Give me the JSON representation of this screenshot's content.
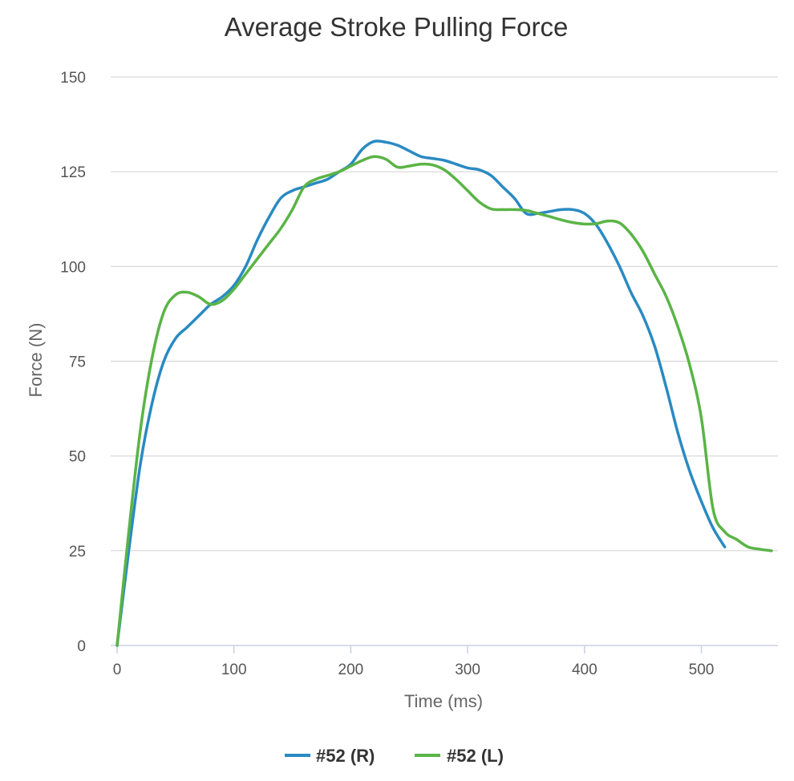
{
  "chart_data": {
    "type": "line",
    "title": "Average Stroke Pulling Force",
    "xlabel": "Time (ms)",
    "ylabel": "Force (N)",
    "xlim": [
      0,
      565
    ],
    "ylim": [
      0,
      150
    ],
    "x_ticks": [
      "0",
      "100",
      "200",
      "300",
      "400",
      "500"
    ],
    "y_ticks": [
      "0",
      "25",
      "50",
      "75",
      "100",
      "125",
      "150"
    ],
    "grid": true,
    "legend_position": "bottom-center",
    "series": [
      {
        "name": "#52 (R)",
        "color": "#2a8ac2",
        "points": [
          [
            0,
            0
          ],
          [
            10,
            25
          ],
          [
            20,
            48
          ],
          [
            30,
            64
          ],
          [
            40,
            75
          ],
          [
            50,
            81
          ],
          [
            60,
            84
          ],
          [
            70,
            87
          ],
          [
            80,
            90
          ],
          [
            90,
            92
          ],
          [
            100,
            95
          ],
          [
            110,
            100
          ],
          [
            120,
            107
          ],
          [
            130,
            113
          ],
          [
            140,
            118
          ],
          [
            150,
            120
          ],
          [
            160,
            121
          ],
          [
            170,
            122
          ],
          [
            180,
            123
          ],
          [
            190,
            125
          ],
          [
            200,
            127
          ],
          [
            210,
            131
          ],
          [
            220,
            133
          ],
          [
            230,
            132.8
          ],
          [
            240,
            132
          ],
          [
            250,
            130.5
          ],
          [
            260,
            129
          ],
          [
            270,
            128.5
          ],
          [
            280,
            128
          ],
          [
            290,
            127
          ],
          [
            300,
            126
          ],
          [
            310,
            125.5
          ],
          [
            320,
            124
          ],
          [
            330,
            121
          ],
          [
            340,
            118
          ],
          [
            350,
            114
          ],
          [
            360,
            114
          ],
          [
            370,
            114.5
          ],
          [
            380,
            115
          ],
          [
            390,
            115
          ],
          [
            400,
            114
          ],
          [
            410,
            111
          ],
          [
            420,
            106
          ],
          [
            430,
            100
          ],
          [
            440,
            93
          ],
          [
            450,
            87
          ],
          [
            460,
            79
          ],
          [
            470,
            68
          ],
          [
            480,
            56
          ],
          [
            490,
            46
          ],
          [
            500,
            38
          ],
          [
            510,
            31
          ],
          [
            520,
            26
          ]
        ]
      },
      {
        "name": "#52 (L)",
        "color": "#5ab446",
        "points": [
          [
            0,
            0
          ],
          [
            10,
            30
          ],
          [
            20,
            57
          ],
          [
            30,
            76
          ],
          [
            40,
            88
          ],
          [
            50,
            92.5
          ],
          [
            60,
            93.2
          ],
          [
            70,
            92
          ],
          [
            80,
            90
          ],
          [
            90,
            91
          ],
          [
            100,
            94
          ],
          [
            110,
            98
          ],
          [
            120,
            102
          ],
          [
            130,
            106
          ],
          [
            140,
            110
          ],
          [
            150,
            115
          ],
          [
            160,
            121
          ],
          [
            170,
            123
          ],
          [
            180,
            124
          ],
          [
            190,
            125
          ],
          [
            200,
            126.5
          ],
          [
            210,
            128
          ],
          [
            220,
            129
          ],
          [
            230,
            128.3
          ],
          [
            240,
            126.2
          ],
          [
            250,
            126.5
          ],
          [
            260,
            127
          ],
          [
            270,
            126.8
          ],
          [
            280,
            125.5
          ],
          [
            290,
            123
          ],
          [
            300,
            120
          ],
          [
            310,
            117
          ],
          [
            320,
            115.2
          ],
          [
            330,
            115
          ],
          [
            340,
            115
          ],
          [
            350,
            114.8
          ],
          [
            360,
            114
          ],
          [
            370,
            113.2
          ],
          [
            380,
            112.3
          ],
          [
            390,
            111.6
          ],
          [
            400,
            111.2
          ],
          [
            410,
            111.3
          ],
          [
            420,
            112
          ],
          [
            430,
            111.5
          ],
          [
            440,
            108.5
          ],
          [
            450,
            104
          ],
          [
            460,
            98
          ],
          [
            470,
            92
          ],
          [
            480,
            84
          ],
          [
            490,
            74
          ],
          [
            500,
            60
          ],
          [
            510,
            36
          ],
          [
            520,
            30
          ],
          [
            530,
            28
          ],
          [
            540,
            26
          ],
          [
            550,
            25.4
          ],
          [
            560,
            25
          ]
        ]
      }
    ]
  }
}
